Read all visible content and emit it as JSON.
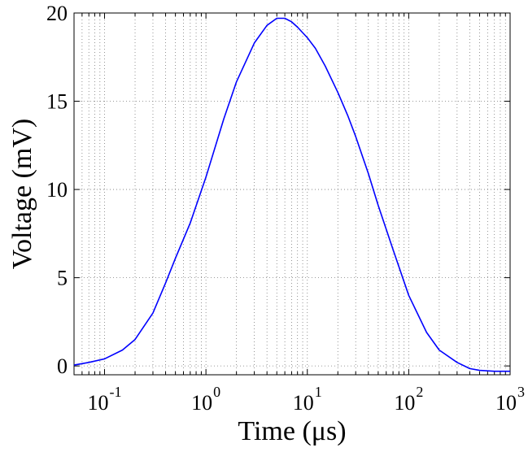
{
  "chart_data": {
    "type": "line",
    "xlabel": "Time (μs)",
    "ylabel": "Voltage (mV)",
    "xscale": "log",
    "xlim": [
      0.05,
      1000
    ],
    "ylim": [
      -0.5,
      20
    ],
    "grid": true,
    "x_ticks": [
      {
        "base": "10",
        "exp": "-1",
        "value": 0.1
      },
      {
        "base": "10",
        "exp": "0",
        "value": 1
      },
      {
        "base": "10",
        "exp": "1",
        "value": 10
      },
      {
        "base": "10",
        "exp": "2",
        "value": 100
      },
      {
        "base": "10",
        "exp": "3",
        "value": 1000
      }
    ],
    "y_ticks": [
      {
        "label": "0",
        "value": 0
      },
      {
        "label": "5",
        "value": 5
      },
      {
        "label": "10",
        "value": 10
      },
      {
        "label": "15",
        "value": 15
      },
      {
        "label": "20",
        "value": 20
      }
    ],
    "series": [
      {
        "color": "#0000ff",
        "x": [
          0.05,
          0.07,
          0.1,
          0.15,
          0.2,
          0.3,
          0.4,
          0.5,
          0.7,
          1,
          1.5,
          2,
          3,
          4,
          5,
          6,
          7,
          8,
          10,
          12,
          15,
          20,
          25,
          30,
          40,
          50,
          70,
          100,
          150,
          200,
          300,
          400,
          500,
          700,
          1000
        ],
        "y": [
          0.05,
          0.2,
          0.4,
          0.9,
          1.5,
          3.0,
          4.7,
          6.1,
          8.1,
          10.7,
          14.0,
          16.1,
          18.3,
          19.3,
          19.7,
          19.7,
          19.5,
          19.2,
          18.6,
          18.0,
          17.0,
          15.5,
          14.2,
          13.0,
          10.9,
          9.1,
          6.6,
          4.0,
          1.9,
          0.9,
          0.2,
          -0.15,
          -0.25,
          -0.3,
          -0.3
        ]
      }
    ]
  }
}
